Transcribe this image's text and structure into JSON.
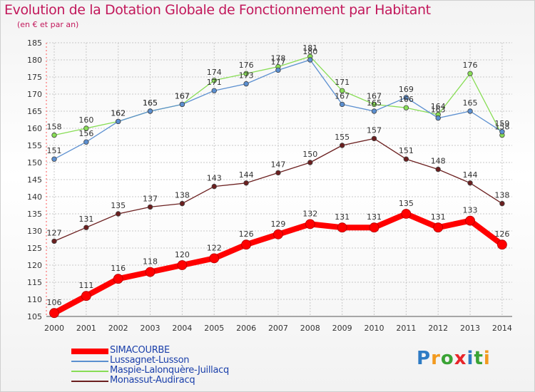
{
  "title": "Evolution de la Dotation Globale de Fonctionnement par Habitant",
  "subtitle": "(en € et par an)",
  "brand": {
    "text": "Proxiti",
    "letters": [
      "P",
      "r",
      "o",
      "x",
      "i",
      "t",
      "i"
    ],
    "colors": [
      "#2e7bc4",
      "#f29a1f",
      "#3aa335",
      "#e8252a",
      "#2e7bc4",
      "#3aa335",
      "#f29a1f"
    ]
  },
  "chart_data": {
    "type": "line",
    "categories": [
      "2000",
      "2001",
      "2002",
      "2003",
      "2004",
      "2005",
      "2006",
      "2007",
      "2008",
      "2009",
      "2010",
      "2011",
      "2012",
      "2013",
      "2014"
    ],
    "ylim": [
      105,
      185
    ],
    "yticks": [
      105,
      110,
      115,
      120,
      125,
      130,
      135,
      140,
      145,
      150,
      155,
      160,
      165,
      170,
      175,
      180,
      185
    ],
    "grid": true,
    "legend_position": "bottom-left",
    "series": [
      {
        "name": "Monassut-Audiracq",
        "color": "#6b1f1f",
        "values": [
          127,
          131,
          135,
          137,
          138,
          143,
          144,
          147,
          150,
          155,
          157,
          151,
          148,
          144,
          138
        ]
      },
      {
        "name": "Maspie-Lalonquère-Juillacq",
        "color": "#88dd55",
        "values": [
          158,
          160,
          162,
          165,
          167,
          174,
          176,
          178,
          181,
          171,
          167,
          166,
          164,
          176,
          158
        ]
      },
      {
        "name": "Lussagnet-Lusson",
        "color": "#5b8fd0",
        "values": [
          151,
          156,
          162,
          165,
          167,
          171,
          173,
          177,
          180,
          167,
          165,
          169,
          163,
          165,
          159
        ]
      },
      {
        "name": "SIMACOURBE",
        "color": "#ff0000",
        "values": [
          106,
          111,
          116,
          118,
          120,
          122,
          126,
          129,
          132,
          131,
          131,
          135,
          131,
          133,
          126
        ]
      }
    ]
  }
}
